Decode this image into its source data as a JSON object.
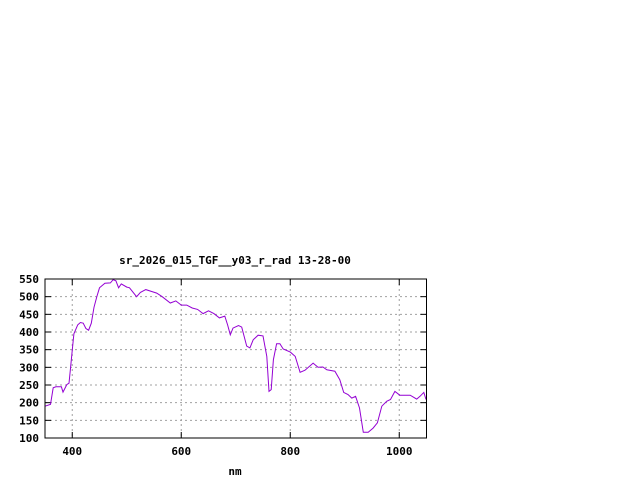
{
  "chart_data": {
    "type": "line",
    "title": "sr_2026_015_TGF__y03_r_rad 13-28-00",
    "xlabel": "nm",
    "ylabel": "",
    "xlim": [
      350,
      1050
    ],
    "ylim": [
      100,
      550
    ],
    "xticks": [
      400,
      600,
      800,
      1000
    ],
    "yticks": [
      100,
      150,
      200,
      250,
      300,
      350,
      400,
      450,
      500,
      550
    ],
    "grid": true,
    "line_color": "#9400d3",
    "series": [
      {
        "x": [
          350,
          360,
          365,
          370,
          380,
          383,
          390,
          394,
          397,
          400,
          403,
          410,
          415,
          420,
          425,
          430,
          435,
          440,
          445,
          450,
          460,
          470,
          475,
          480,
          485,
          490,
          500,
          505,
          518,
          525,
          535,
          545,
          555,
          565,
          580,
          590,
          600,
          610,
          620,
          630,
          640,
          650,
          660,
          670,
          680,
          685,
          690,
          695,
          705,
          711,
          720,
          726,
          732,
          741,
          750,
          757,
          761,
          765,
          769,
          775,
          781,
          787,
          800,
          809,
          818,
          827,
          842,
          851,
          860,
          867,
          882,
          891,
          898,
          906,
          913,
          920,
          927,
          934,
          943,
          952,
          960,
          968,
          977,
          984,
          992,
          1001,
          1010,
          1020,
          1032,
          1038,
          1045,
          1049
        ],
        "y": [
          190,
          195,
          242,
          245,
          245,
          230,
          251,
          255,
          300,
          350,
          395,
          420,
          427,
          425,
          410,
          405,
          425,
          470,
          500,
          525,
          538,
          539,
          548,
          545,
          525,
          536,
          527,
          525,
          500,
          512,
          520,
          515,
          510,
          500,
          482,
          488,
          476,
          476,
          468,
          464,
          452,
          460,
          452,
          440,
          445,
          420,
          392,
          411,
          418,
          414,
          360,
          355,
          378,
          391,
          389,
          331,
          232,
          237,
          322,
          367,
          367,
          352,
          343,
          331,
          286,
          292,
          312,
          300,
          301,
          293,
          289,
          265,
          229,
          223,
          213,
          218,
          185,
          116,
          116,
          128,
          143,
          190,
          204,
          209,
          232,
          221,
          221,
          221,
          210,
          218,
          229,
          209
        ]
      }
    ]
  }
}
